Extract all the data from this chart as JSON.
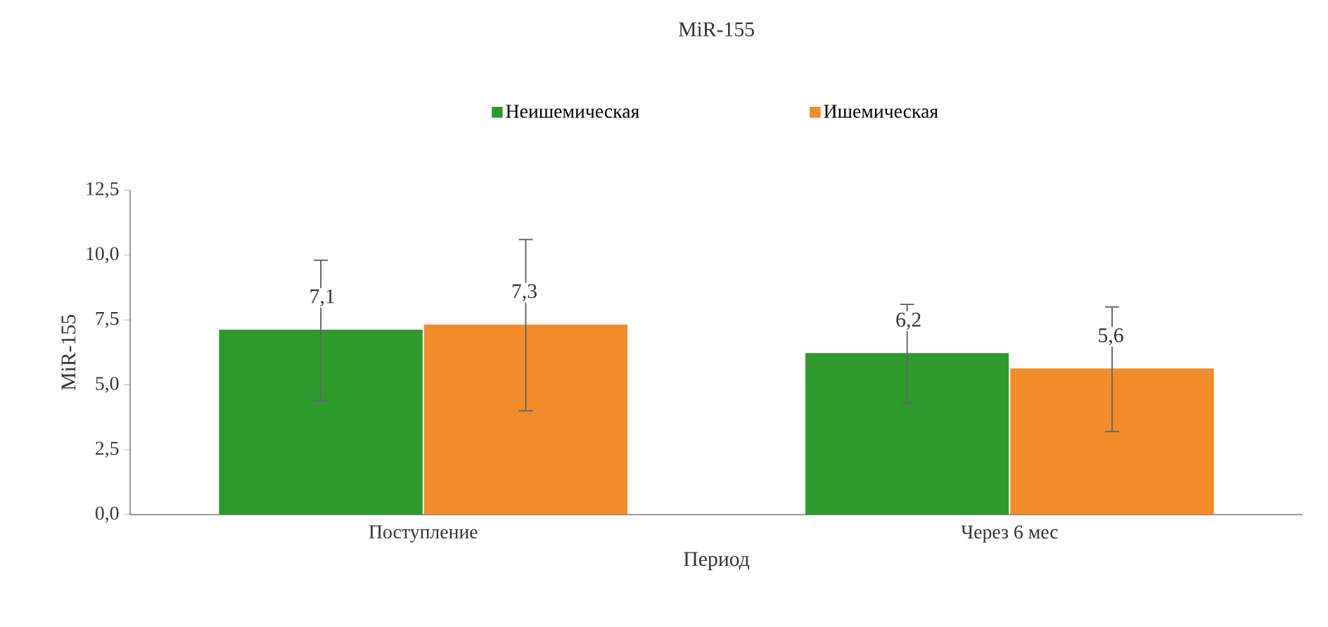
{
  "chart_data": {
    "type": "bar",
    "title": "MiR-155",
    "xlabel": "Период",
    "ylabel": "MiR-155",
    "categories": [
      "Поступление",
      "Через 6 мес"
    ],
    "series": [
      {
        "name": "Неишемическая",
        "color": "#2e9a2e",
        "values": [
          7.1,
          6.2
        ],
        "errors": [
          2.7,
          1.9
        ],
        "value_labels": [
          "7,1",
          "6,2"
        ]
      },
      {
        "name": "Ишемическая",
        "color": "#f28c28",
        "values": [
          7.3,
          5.6
        ],
        "errors": [
          3.3,
          2.4
        ],
        "value_labels": [
          "7,3",
          "5,6"
        ]
      }
    ],
    "ylim": [
      0,
      12.5
    ],
    "yticks": [
      {
        "value": 0,
        "label": "0,0"
      },
      {
        "value": 2.5,
        "label": "2,5"
      },
      {
        "value": 5,
        "label": "5,0"
      },
      {
        "value": 7.5,
        "label": "7,5"
      },
      {
        "value": 10,
        "label": "10,0"
      },
      {
        "value": 12.5,
        "label": "12,5"
      }
    ],
    "grid": false,
    "legend": "top"
  }
}
